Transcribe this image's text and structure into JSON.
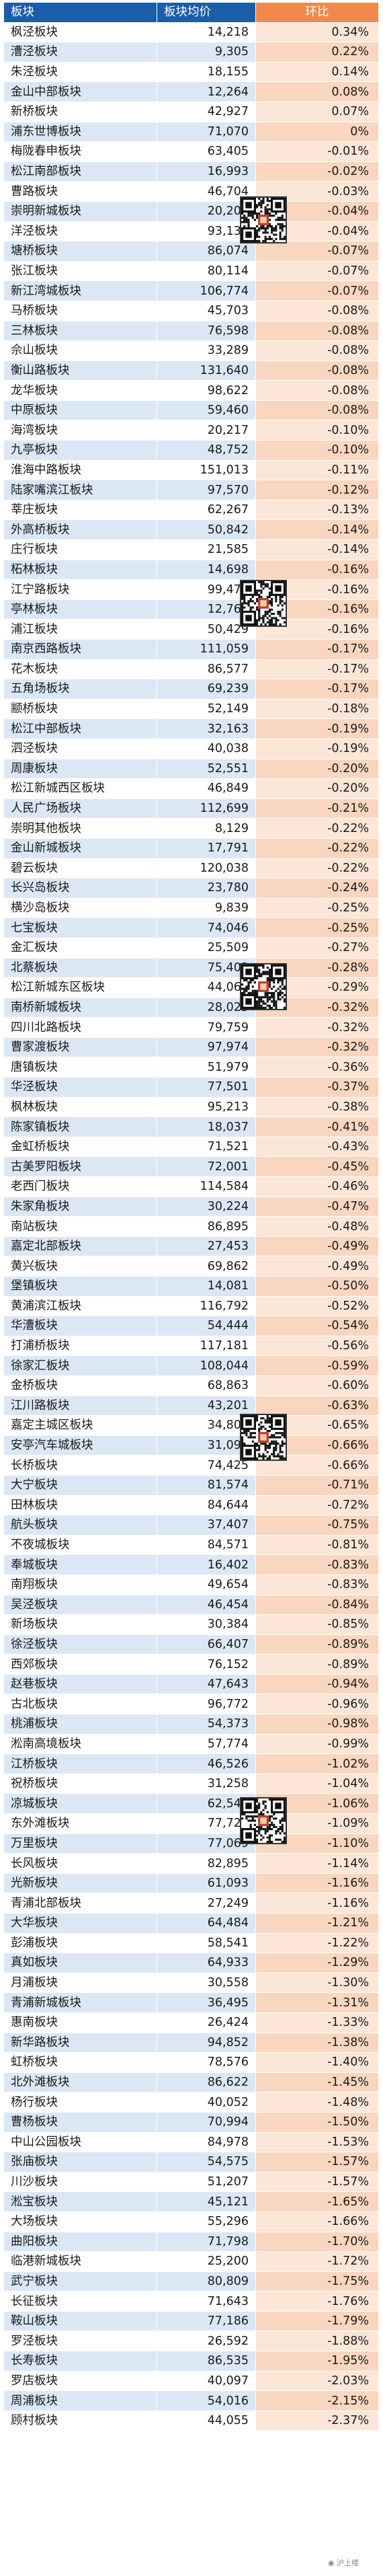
{
  "table": {
    "headers": [
      "板块",
      "板块均价",
      "环比"
    ],
    "rows": [
      [
        "枫泾板块",
        "14,218",
        "0.34%"
      ],
      [
        "漕泾板块",
        "9,305",
        "0.22%"
      ],
      [
        "朱泾板块",
        "18,155",
        "0.14%"
      ],
      [
        "金山中部板块",
        "12,264",
        "0.08%"
      ],
      [
        "新桥板块",
        "42,927",
        "0.07%"
      ],
      [
        "浦东世博板块",
        "71,070",
        "0%"
      ],
      [
        "梅陇春申板块",
        "63,405",
        "-0.01%"
      ],
      [
        "松江南部板块",
        "16,993",
        "-0.02%"
      ],
      [
        "曹路板块",
        "46,704",
        "-0.03%"
      ],
      [
        "崇明新城板块",
        "20,201",
        "-0.04%"
      ],
      [
        "洋泾板块",
        "93,135",
        "-0.04%"
      ],
      [
        "塘桥板块",
        "86,074",
        "-0.07%"
      ],
      [
        "张江板块",
        "80,114",
        "-0.07%"
      ],
      [
        "新江湾城板块",
        "106,774",
        "-0.07%"
      ],
      [
        "马桥板块",
        "45,703",
        "-0.08%"
      ],
      [
        "三林板块",
        "76,598",
        "-0.08%"
      ],
      [
        "佘山板块",
        "33,289",
        "-0.08%"
      ],
      [
        "衡山路板块",
        "131,640",
        "-0.08%"
      ],
      [
        "龙华板块",
        "98,622",
        "-0.08%"
      ],
      [
        "中原板块",
        "59,460",
        "-0.08%"
      ],
      [
        "海湾板块",
        "20,217",
        "-0.10%"
      ],
      [
        "九亭板块",
        "48,752",
        "-0.10%"
      ],
      [
        "淮海中路板块",
        "151,013",
        "-0.11%"
      ],
      [
        "陆家嘴滨江板块",
        "97,570",
        "-0.12%"
      ],
      [
        "莘庄板块",
        "62,267",
        "-0.13%"
      ],
      [
        "外高桥板块",
        "50,842",
        "-0.14%"
      ],
      [
        "庄行板块",
        "21,585",
        "-0.14%"
      ],
      [
        "柘林板块",
        "14,698",
        "-0.16%"
      ],
      [
        "江宁路板块",
        "99,472",
        "-0.16%"
      ],
      [
        "亭林板块",
        "12,760",
        "-0.16%"
      ],
      [
        "浦江板块",
        "50,429",
        "-0.16%"
      ],
      [
        "南京西路板块",
        "111,059",
        "-0.17%"
      ],
      [
        "花木板块",
        "86,577",
        "-0.17%"
      ],
      [
        "五角场板块",
        "69,239",
        "-0.17%"
      ],
      [
        "颛桥板块",
        "52,149",
        "-0.18%"
      ],
      [
        "松江中部板块",
        "32,163",
        "-0.19%"
      ],
      [
        "泗泾板块",
        "40,038",
        "-0.19%"
      ],
      [
        "周康板块",
        "52,551",
        "-0.20%"
      ],
      [
        "松江新城西区板块",
        "46,849",
        "-0.20%"
      ],
      [
        "人民广场板块",
        "112,699",
        "-0.21%"
      ],
      [
        "崇明其他板块",
        "8,129",
        "-0.22%"
      ],
      [
        "金山新城板块",
        "17,791",
        "-0.22%"
      ],
      [
        "碧云板块",
        "120,038",
        "-0.22%"
      ],
      [
        "长兴岛板块",
        "23,780",
        "-0.24%"
      ],
      [
        "横沙岛板块",
        "9,839",
        "-0.25%"
      ],
      [
        "七宝板块",
        "74,046",
        "-0.25%"
      ],
      [
        "金汇板块",
        "25,509",
        "-0.27%"
      ],
      [
        "北蔡板块",
        "75,403",
        "-0.28%"
      ],
      [
        "松江新城东区板块",
        "44,069",
        "-0.29%"
      ],
      [
        "南桥新城板块",
        "28,025",
        "-0.32%"
      ],
      [
        "四川北路板块",
        "79,759",
        "-0.32%"
      ],
      [
        "曹家渡板块",
        "97,974",
        "-0.32%"
      ],
      [
        "唐镇板块",
        "51,979",
        "-0.36%"
      ],
      [
        "华泾板块",
        "77,501",
        "-0.37%"
      ],
      [
        "枫林板块",
        "95,213",
        "-0.38%"
      ],
      [
        "陈家镇板块",
        "18,037",
        "-0.41%"
      ],
      [
        "金虹桥板块",
        "71,521",
        "-0.43%"
      ],
      [
        "古美罗阳板块",
        "72,001",
        "-0.45%"
      ],
      [
        "老西门板块",
        "114,584",
        "-0.46%"
      ],
      [
        "朱家角板块",
        "30,224",
        "-0.47%"
      ],
      [
        "南站板块",
        "86,895",
        "-0.48%"
      ],
      [
        "嘉定北部板块",
        "27,453",
        "-0.49%"
      ],
      [
        "黄兴板块",
        "69,862",
        "-0.49%"
      ],
      [
        "堡镇板块",
        "14,081",
        "-0.50%"
      ],
      [
        "黄浦滨江板块",
        "116,792",
        "-0.52%"
      ],
      [
        "华漕板块",
        "54,444",
        "-0.54%"
      ],
      [
        "打浦桥板块",
        "117,181",
        "-0.56%"
      ],
      [
        "徐家汇板块",
        "108,044",
        "-0.59%"
      ],
      [
        "金桥板块",
        "68,863",
        "-0.60%"
      ],
      [
        "江川路板块",
        "43,201",
        "-0.63%"
      ],
      [
        "嘉定主城区板块",
        "34,801",
        "-0.65%"
      ],
      [
        "安亭汽车城板块",
        "31,095",
        "-0.66%"
      ],
      [
        "长桥板块",
        "74,425",
        "-0.66%"
      ],
      [
        "大宁板块",
        "81,574",
        "-0.71%"
      ],
      [
        "田林板块",
        "84,644",
        "-0.72%"
      ],
      [
        "航头板块",
        "37,407",
        "-0.75%"
      ],
      [
        "不夜城板块",
        "84,571",
        "-0.81%"
      ],
      [
        "奉城板块",
        "16,402",
        "-0.83%"
      ],
      [
        "南翔板块",
        "49,654",
        "-0.83%"
      ],
      [
        "吴泾板块",
        "46,454",
        "-0.84%"
      ],
      [
        "新场板块",
        "30,384",
        "-0.85%"
      ],
      [
        "徐泾板块",
        "66,407",
        "-0.89%"
      ],
      [
        "西郊板块",
        "76,152",
        "-0.89%"
      ],
      [
        "赵巷板块",
        "47,643",
        "-0.94%"
      ],
      [
        "古北板块",
        "96,772",
        "-0.96%"
      ],
      [
        "桃浦板块",
        "54,373",
        "-0.98%"
      ],
      [
        "淞南高境板块",
        "57,774",
        "-0.99%"
      ],
      [
        "江桥板块",
        "46,526",
        "-1.02%"
      ],
      [
        "祝桥板块",
        "31,258",
        "-1.04%"
      ],
      [
        "凉城板块",
        "62,543",
        "-1.06%"
      ],
      [
        "东外滩板块",
        "77,728",
        "-1.09%"
      ],
      [
        "万里板块",
        "77,069",
        "-1.10%"
      ],
      [
        "长风板块",
        "82,895",
        "-1.14%"
      ],
      [
        "光新板块",
        "61,093",
        "-1.16%"
      ],
      [
        "青浦北部板块",
        "27,249",
        "-1.16%"
      ],
      [
        "大华板块",
        "64,484",
        "-1.21%"
      ],
      [
        "彭浦板块",
        "58,541",
        "-1.22%"
      ],
      [
        "真如板块",
        "64,933",
        "-1.29%"
      ],
      [
        "月浦板块",
        "30,558",
        "-1.30%"
      ],
      [
        "青浦新城板块",
        "36,495",
        "-1.31%"
      ],
      [
        "惠南板块",
        "26,424",
        "-1.33%"
      ],
      [
        "新华路板块",
        "94,852",
        "-1.38%"
      ],
      [
        "虹桥板块",
        "78,576",
        "-1.40%"
      ],
      [
        "北外滩板块",
        "86,622",
        "-1.45%"
      ],
      [
        "杨行板块",
        "40,052",
        "-1.48%"
      ],
      [
        "曹杨板块",
        "70,994",
        "-1.50%"
      ],
      [
        "中山公园板块",
        "84,978",
        "-1.53%"
      ],
      [
        "张庙板块",
        "54,575",
        "-1.57%"
      ],
      [
        "川沙板块",
        "51,207",
        "-1.57%"
      ],
      [
        "淞宝板块",
        "45,121",
        "-1.65%"
      ],
      [
        "大场板块",
        "55,296",
        "-1.66%"
      ],
      [
        "曲阳板块",
        "71,798",
        "-1.70%"
      ],
      [
        "临港新城板块",
        "25,200",
        "-1.72%"
      ],
      [
        "武宁板块",
        "80,809",
        "-1.75%"
      ],
      [
        "长征板块",
        "71,643",
        "-1.76%"
      ],
      [
        "鞍山板块",
        "77,186",
        "-1.79%"
      ],
      [
        "罗泾板块",
        "26,592",
        "-1.88%"
      ],
      [
        "长寿板块",
        "86,535",
        "-1.95%"
      ],
      [
        "罗店板块",
        "40,097",
        "-2.03%"
      ],
      [
        "周浦板块",
        "54,016",
        "-2.15%"
      ],
      [
        "顾村板块",
        "44,055",
        "-2.37%"
      ]
    ]
  },
  "colors": {
    "header_blue": "#1b5da8",
    "header_orange": "#f2884a",
    "row_alt_blue": "#dbe7f4",
    "change_light": "#fbe6d7",
    "change_alt": "#f9d6bf"
  },
  "qr_codes": [
    "qr-code-icon",
    "qr-code-icon",
    "qr-code-icon",
    "qr-code-icon",
    "qr-code-icon"
  ],
  "watermark": "沪上楼",
  "watermark_icon": "wechat-logo-icon"
}
